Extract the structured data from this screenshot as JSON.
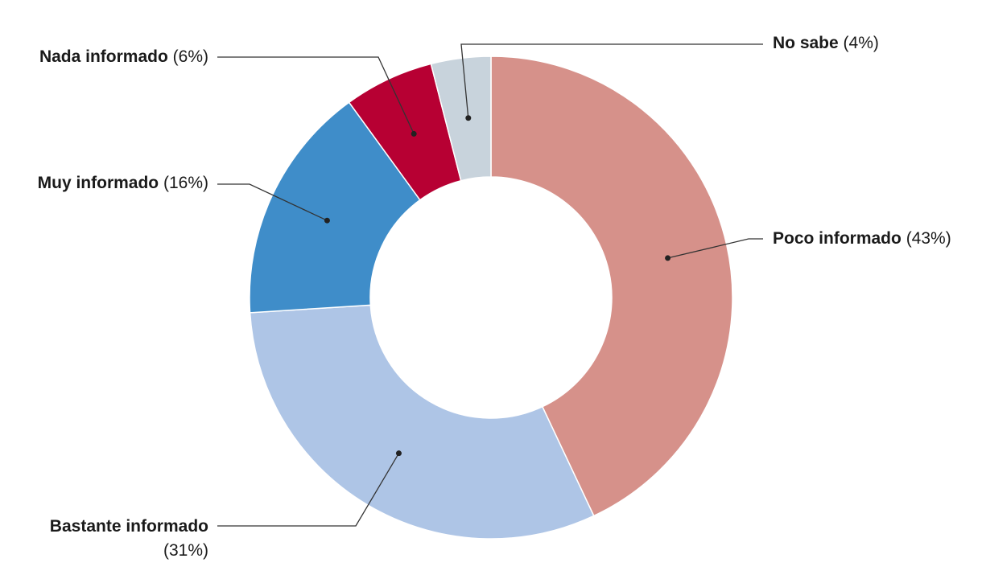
{
  "chart_data": {
    "type": "pie",
    "donut": true,
    "title": "",
    "slices": [
      {
        "label": "Poco informado",
        "value": 43,
        "pct_text": "(43%)",
        "color": "#d6918a"
      },
      {
        "label": "Bastante informado",
        "value": 31,
        "pct_text": "(31%)",
        "color": "#aec5e6"
      },
      {
        "label": "Muy informado",
        "value": 16,
        "pct_text": "(16%)",
        "color": "#3f8dc9"
      },
      {
        "label": "Nada informado",
        "value": 6,
        "pct_text": "(6%)",
        "color": "#b70033"
      },
      {
        "label": "No sabe",
        "value": 4,
        "pct_text": "(4%)",
        "color": "#c8d3dc"
      }
    ],
    "legend": "callout-labels"
  }
}
